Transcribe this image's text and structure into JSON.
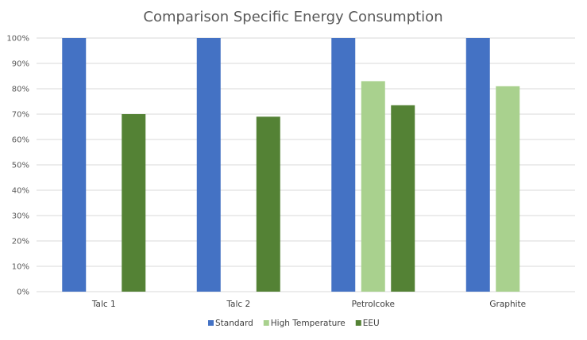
{
  "chart_data": {
    "type": "bar",
    "title": "Comparison Specific Energy Consumption",
    "xlabel": "",
    "ylabel": "",
    "categories": [
      "Talc 1",
      "Talc 2",
      "Petrolcoke",
      "Graphite"
    ],
    "series": [
      {
        "name": "Standard",
        "color": "#4472C4",
        "values": [
          100,
          100,
          100,
          100
        ]
      },
      {
        "name": "High Temperature",
        "color": "#A9D18E",
        "values": [
          null,
          null,
          83,
          81
        ]
      },
      {
        "name": "EEU",
        "color": "#548235",
        "values": [
          70,
          69,
          73.5,
          null
        ]
      }
    ],
    "ylim": [
      0,
      100
    ],
    "yticks": [
      "0%",
      "10%",
      "20%",
      "30%",
      "40%",
      "50%",
      "60%",
      "70%",
      "80%",
      "90%",
      "100%"
    ],
    "grid": true,
    "legend_position": "bottom"
  }
}
